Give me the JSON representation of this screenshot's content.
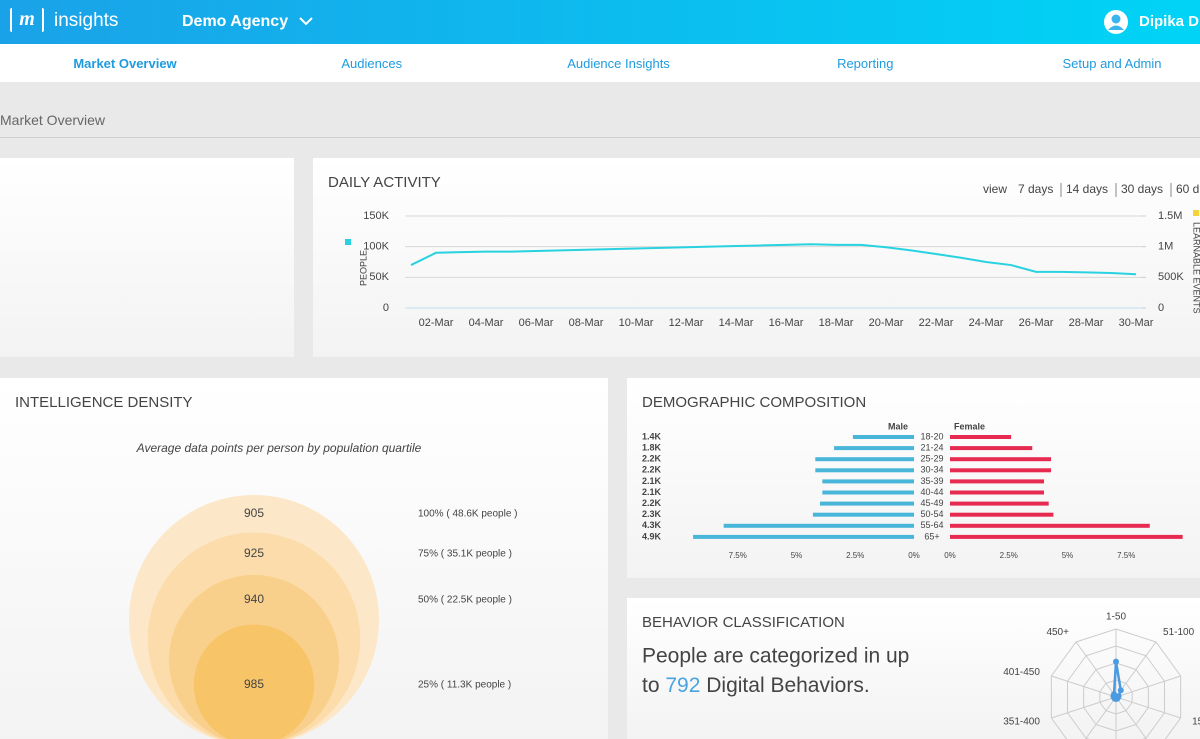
{
  "header": {
    "logo_mark": "m",
    "logo_text": "insights",
    "agency": "Demo Agency",
    "user": "Dipika D"
  },
  "nav": {
    "items": [
      "Market Overview",
      "Audiences",
      "Audience Insights",
      "Reporting",
      "Setup and Admin"
    ],
    "active": 0
  },
  "breadcrumb": "Market Overview",
  "chart_data": [
    {
      "type": "line",
      "title": "DAILY ACTIVITY",
      "view_label": "view",
      "view_options": [
        "7 days",
        "14 days",
        "30 days",
        "60 d"
      ],
      "view_selected": 2,
      "categories": [
        null,
        "02-Mar",
        null,
        "04-Mar",
        null,
        "06-Mar",
        null,
        "08-Mar",
        null,
        "10-Mar",
        null,
        "12-Mar",
        null,
        "14-Mar",
        null,
        "16-Mar",
        null,
        "18-Mar",
        null,
        "20-Mar",
        null,
        "22-Mar",
        null,
        "24-Mar",
        null,
        "26-Mar",
        null,
        "28-Mar",
        null,
        "30-Mar"
      ],
      "series": [
        {
          "name": "PEOPLE",
          "color": "#29d2e0",
          "values": [
            70000,
            90000,
            91000,
            92000,
            92000,
            93000,
            94000,
            95000,
            96000,
            97000,
            98000,
            99000,
            100000,
            101000,
            102000,
            103000,
            104000,
            103000,
            103000,
            99000,
            94000,
            88000,
            82000,
            75000,
            70000,
            59000,
            59000,
            58000,
            57000,
            55000
          ]
        }
      ],
      "ylim": [
        0,
        150000
      ],
      "yticks": [
        0,
        {
          "value": 50000,
          "label": "50K"
        },
        {
          "value": 100000,
          "label": "100K"
        },
        {
          "value": 150000,
          "label": "150K"
        }
      ],
      "y2label": "LEARNABLE EVENTS",
      "y2color": "#f2d43b",
      "y2lim": [
        0,
        1500000
      ],
      "y2ticks": [
        0,
        {
          "value": 500000,
          "label": "500K"
        },
        {
          "value": 1000000,
          "label": "1M"
        },
        {
          "value": 1500000,
          "label": "1.5M"
        }
      ],
      "grid": true
    },
    {
      "type": "nested-circles",
      "title": "INTELLIGENCE DENSITY",
      "subtitle": "Average data points per person by population quartile",
      "values": [
        905,
        925,
        940,
        985
      ],
      "sizes": [
        48600,
        35100,
        22500,
        11300
      ],
      "labels": [
        "100% ( 48.6K people )",
        "75% ( 35.1K people )",
        "50% ( 22.5K people )",
        "25% ( 11.3K people )"
      ],
      "colors": [
        "#fce8c8",
        "#fbdcaa",
        "#f9d08b",
        "#f8c468"
      ]
    },
    {
      "type": "pyramid",
      "title": "DEMOGRAPHIC COMPOSITION",
      "categories": [
        "18-20",
        "21-24",
        "25-29",
        "30-34",
        "35-39",
        "40-44",
        "45-49",
        "50-54",
        "55-64",
        "65+"
      ],
      "totals": [
        "1.4K",
        "1.8K",
        "2.2K",
        "2.2K",
        "2.1K",
        "2.1K",
        "2.2K",
        "2.3K",
        "4.3K",
        "4.9K"
      ],
      "series": [
        {
          "name": "Male",
          "color": "#48b6d9",
          "values": [
            2.6,
            3.4,
            4.2,
            4.2,
            3.9,
            3.9,
            4.0,
            4.3,
            8.1,
            9.4
          ]
        },
        {
          "name": "Female",
          "color": "#e62a50",
          "values": [
            2.6,
            3.5,
            4.3,
            4.3,
            4.0,
            4.0,
            4.2,
            4.4,
            8.5,
            9.9
          ]
        }
      ],
      "xlim": [
        0,
        10
      ],
      "xticks": [
        {
          "value": 7.5,
          "label": "7.5%"
        },
        {
          "value": 5,
          "label": "5%"
        },
        {
          "value": 2.5,
          "label": "2.5%"
        },
        {
          "value": 0,
          "label": "0%"
        }
      ]
    },
    {
      "type": "radar",
      "title": "BEHAVIOR CLASSIFICATION",
      "text": {
        "line1": "People are categorized in up",
        "prefix": "to",
        "number": 792,
        "suffix": "Digital Behaviors."
      },
      "categories": [
        "1-50",
        "51-100",
        null,
        "15",
        null,
        null,
        null,
        "351-400",
        "401-450",
        "450+"
      ],
      "values": [
        52,
        12,
        4,
        3,
        3,
        3,
        3,
        3,
        4,
        5
      ],
      "rlim": [
        0,
        100
      ],
      "rings": 4,
      "color": "#4a9be0"
    }
  ]
}
